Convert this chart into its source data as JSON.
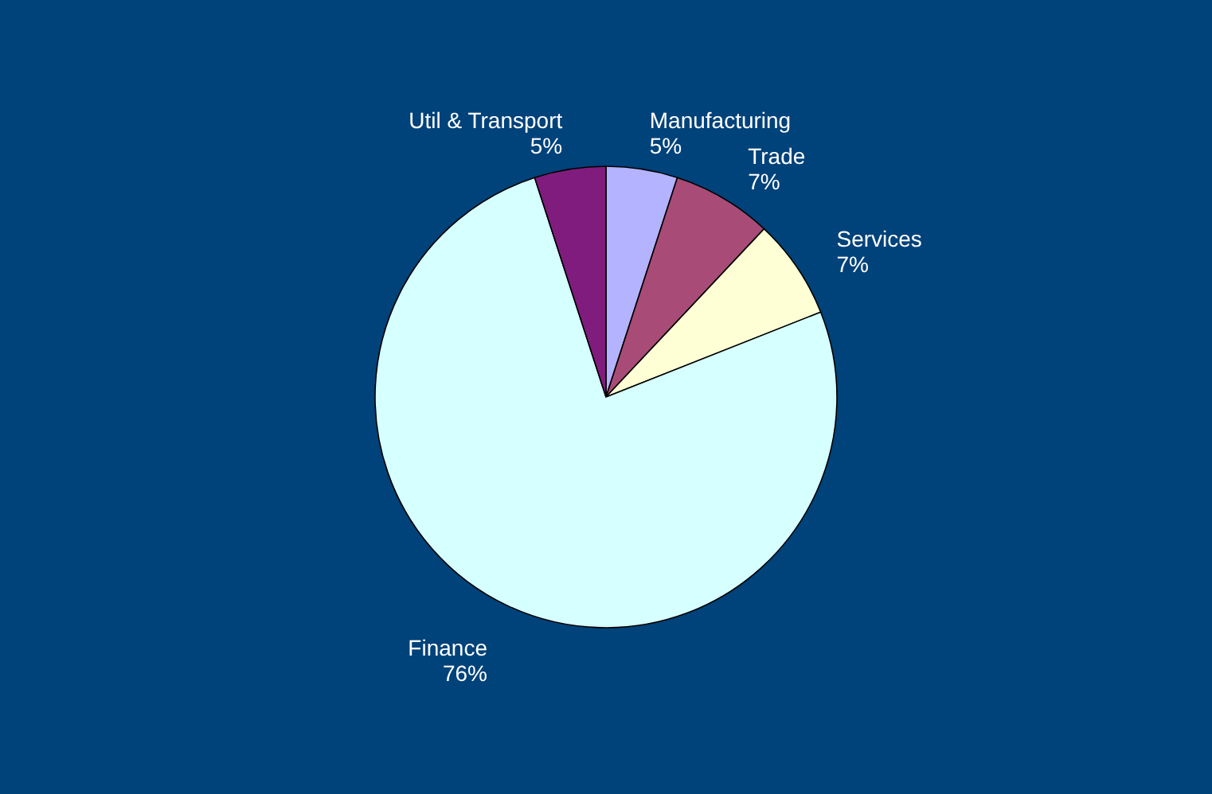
{
  "chart_data": {
    "type": "pie",
    "categories": [
      "Manufacturing",
      "Trade",
      "Services",
      "Finance",
      "Util & Transport"
    ],
    "values": [
      5,
      7,
      7,
      76,
      5
    ],
    "value_labels": [
      "5%",
      "7%",
      "7%",
      "76%",
      "5%"
    ],
    "colors": [
      "#b3b3ff",
      "#a94b77",
      "#ffffd6",
      "#d6ffff",
      "#801c7e"
    ],
    "legend": false
  }
}
